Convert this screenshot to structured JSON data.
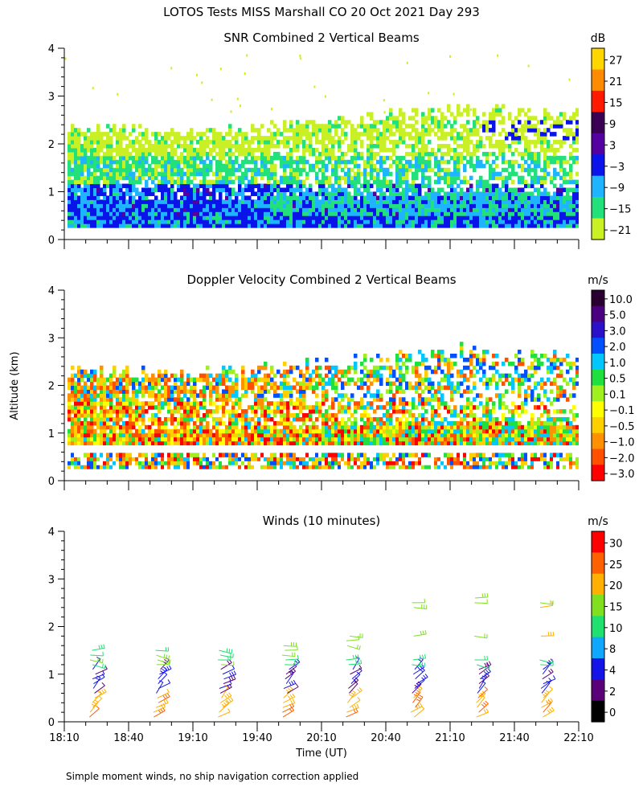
{
  "page_title": "LOTOS Tests MISS Marshall CO  20 Oct 2021 Day 293",
  "ylabel": "Altitude (km)",
  "xlabel": "Time (UT)",
  "footnote": "Simple moment winds, no ship navigation correction applied",
  "time_ticks": [
    "18:10",
    "18:40",
    "19:10",
    "19:40",
    "20:10",
    "20:40",
    "21:10",
    "21:40",
    "22:10"
  ],
  "alt_ticks": [
    "0",
    "1",
    "2",
    "3",
    "4"
  ],
  "chart_data": [
    {
      "type": "heatmap",
      "title": "SNR Combined 2 Vertical Beams",
      "unit": "dB",
      "x_range_ut": [
        "18:10",
        "22:10"
      ],
      "ylim": [
        0,
        4
      ],
      "ylabel": "Altitude (km)",
      "colorbar": {
        "ticks": [
          "27",
          "21",
          "15",
          "9",
          "3",
          "−3",
          "−9",
          "−15",
          "−21"
        ],
        "colors": [
          "#ffd600",
          "#ff8c00",
          "#ff1a00",
          "#3a0054",
          "#5500a0",
          "#0a14e8",
          "#1eb4ff",
          "#22e07a",
          "#c8f024"
        ]
      },
      "echo_top_km": [
        {
          "time": "18:10",
          "top": 2.3
        },
        {
          "time": "19:10",
          "top": 2.2
        },
        {
          "time": "20:10",
          "top": 2.4
        },
        {
          "time": "21:10",
          "top": 2.7
        },
        {
          "time": "22:10",
          "top": 2.6
        }
      ]
    },
    {
      "type": "heatmap",
      "title": "Doppler Velocity Combined 2 Vertical Beams",
      "unit": "m/s",
      "x_range_ut": [
        "18:10",
        "22:10"
      ],
      "ylim": [
        0,
        4
      ],
      "ylabel": "Altitude (km)",
      "colorbar": {
        "ticks": [
          "10.0",
          "5.0",
          "3.0",
          "2.0",
          "1.0",
          "0.5",
          "0.1",
          "−0.1",
          "−0.5",
          "−1.0",
          "−2.0",
          "−3.0"
        ],
        "colors": [
          "#2a0030",
          "#4b0082",
          "#2a10c8",
          "#0050ff",
          "#00c8ff",
          "#20e040",
          "#a0f020",
          "#ffff00",
          "#ffd000",
          "#ff9000",
          "#ff5000",
          "#ff0000"
        ]
      }
    },
    {
      "type": "wind_barbs",
      "title": "Winds (10 minutes)",
      "unit": "m/s",
      "x_range_ut": [
        "18:10",
        "22:10"
      ],
      "ylim": [
        0,
        4
      ],
      "profile_times": [
        "18:25",
        "18:55",
        "19:25",
        "19:55",
        "20:25",
        "20:55",
        "21:25",
        "21:55"
      ],
      "colorbar": {
        "ticks": [
          "30",
          "25",
          "20",
          "15",
          "10",
          "8",
          "4",
          "2",
          "0"
        ],
        "colors": [
          "#ff0000",
          "#ff6000",
          "#ffb000",
          "#80e020",
          "#20e070",
          "#10a8ff",
          "#1414e8",
          "#5a0078",
          "#000000"
        ]
      }
    }
  ]
}
